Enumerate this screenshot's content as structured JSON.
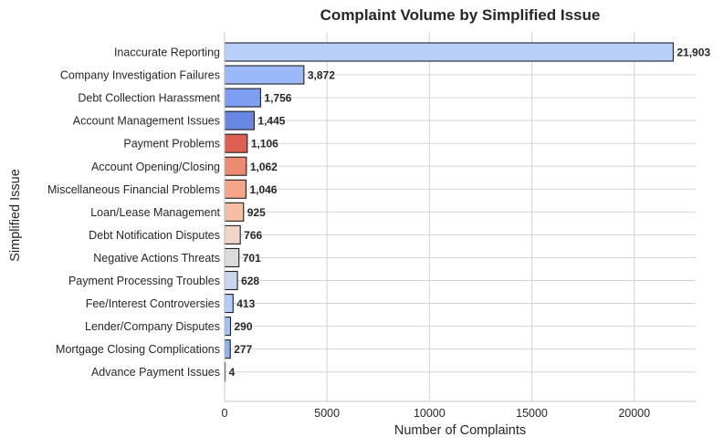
{
  "chart_data": {
    "type": "bar",
    "orientation": "horizontal",
    "title": "Complaint Volume by Simplified Issue",
    "xlabel": "Number of Complaints",
    "ylabel": "Simplified Issue",
    "xlim": [
      0,
      23000
    ],
    "xticks": [
      0,
      5000,
      10000,
      15000,
      20000
    ],
    "grid": true,
    "categories": [
      "Inaccurate Reporting",
      "Company Investigation Failures",
      "Debt Collection Harassment",
      "Account Management Issues",
      "Payment Problems",
      "Account Opening/Closing",
      "Miscellaneous Financial Problems",
      "Loan/Lease Management",
      "Debt Notification Disputes",
      "Negative Actions Threats",
      "Payment Processing Troubles",
      "Fee/Interest Controversies",
      "Lender/Company Disputes",
      "Mortgage Closing Complications",
      "Advance Payment Issues"
    ],
    "values": [
      21903,
      3872,
      1756,
      1445,
      1106,
      1062,
      1046,
      925,
      766,
      701,
      628,
      413,
      290,
      277,
      4
    ],
    "value_labels": [
      "21,903",
      "3,872",
      "1,756",
      "1,445",
      "1,106",
      "1,062",
      "1,046",
      "925",
      "766",
      "701",
      "628",
      "413",
      "290",
      "277",
      "4"
    ],
    "colors": [
      "#b7cff9",
      "#9bb9f8",
      "#7d9ef2",
      "#6a86e3",
      "#dd5f4f",
      "#ec8a72",
      "#f4a68a",
      "#f6bea4",
      "#f1d5c7",
      "#dcdcdc",
      "#c8d7ef",
      "#b3cdfb",
      "#a1c0fa",
      "#8eb0f7",
      "#7b9ff2"
    ]
  }
}
